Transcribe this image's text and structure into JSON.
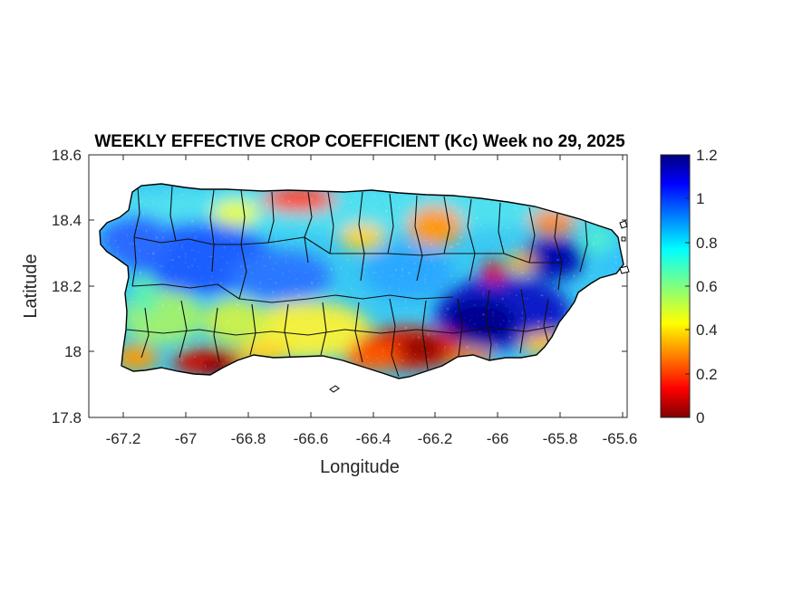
{
  "title": "WEEKLY EFFECTIVE CROP COEFFICIENT (Kc) Week no 29, 2025",
  "xlabel": "Longitude",
  "ylabel": "Latitude",
  "x_ticks": [
    "-67.2",
    "-67",
    "-66.8",
    "-66.6",
    "-66.4",
    "-66.2",
    "-66",
    "-65.8",
    "-65.6"
  ],
  "y_ticks": [
    "18.6",
    "18.4",
    "18.2",
    "18",
    "17.8"
  ],
  "colorbar_ticks": [
    "1.2",
    "1",
    "0.8",
    "0.6",
    "0.4",
    "0.2",
    "0"
  ],
  "colormap": "jet",
  "colorbar_range": [
    0,
    1.2
  ],
  "map": {
    "region": "Puerto Rico",
    "xlim": [
      -67.3,
      -65.6
    ],
    "ylim": [
      17.8,
      18.6
    ],
    "municipal_boundaries": true
  },
  "chart_data": {
    "type": "heatmap",
    "title": "WEEKLY EFFECTIVE CROP COEFFICIENT (Kc) Week no 29, 2025",
    "xlabel": "Longitude",
    "ylabel": "Latitude",
    "xlim": [
      -67.3,
      -65.6
    ],
    "ylim": [
      17.8,
      18.6
    ],
    "clim": [
      0,
      1.2
    ],
    "colormap": "jet",
    "grid": false,
    "legend": "colorbar-right",
    "value_regions": [
      {
        "lon": -65.95,
        "lat": 18.1,
        "kc": 1.15
      },
      {
        "lon": -65.8,
        "lat": 18.28,
        "kc": 1.15
      },
      {
        "lon": -66.85,
        "lat": 18.28,
        "kc": 0.95
      },
      {
        "lon": -67.1,
        "lat": 18.35,
        "kc": 0.9
      },
      {
        "lon": -66.3,
        "lat": 18.2,
        "kc": 0.8
      },
      {
        "lon": -66.05,
        "lat": 18.23,
        "kc": 0.2
      },
      {
        "lon": -66.25,
        "lat": 18.0,
        "kc": 0.15
      },
      {
        "lon": -66.95,
        "lat": 17.97,
        "kc": 0.1
      },
      {
        "lon": -66.6,
        "lat": 18.48,
        "kc": 0.3
      },
      {
        "lon": -66.55,
        "lat": 18.05,
        "kc": 0.45
      },
      {
        "lon": -67.1,
        "lat": 18.08,
        "kc": 0.55
      }
    ]
  }
}
